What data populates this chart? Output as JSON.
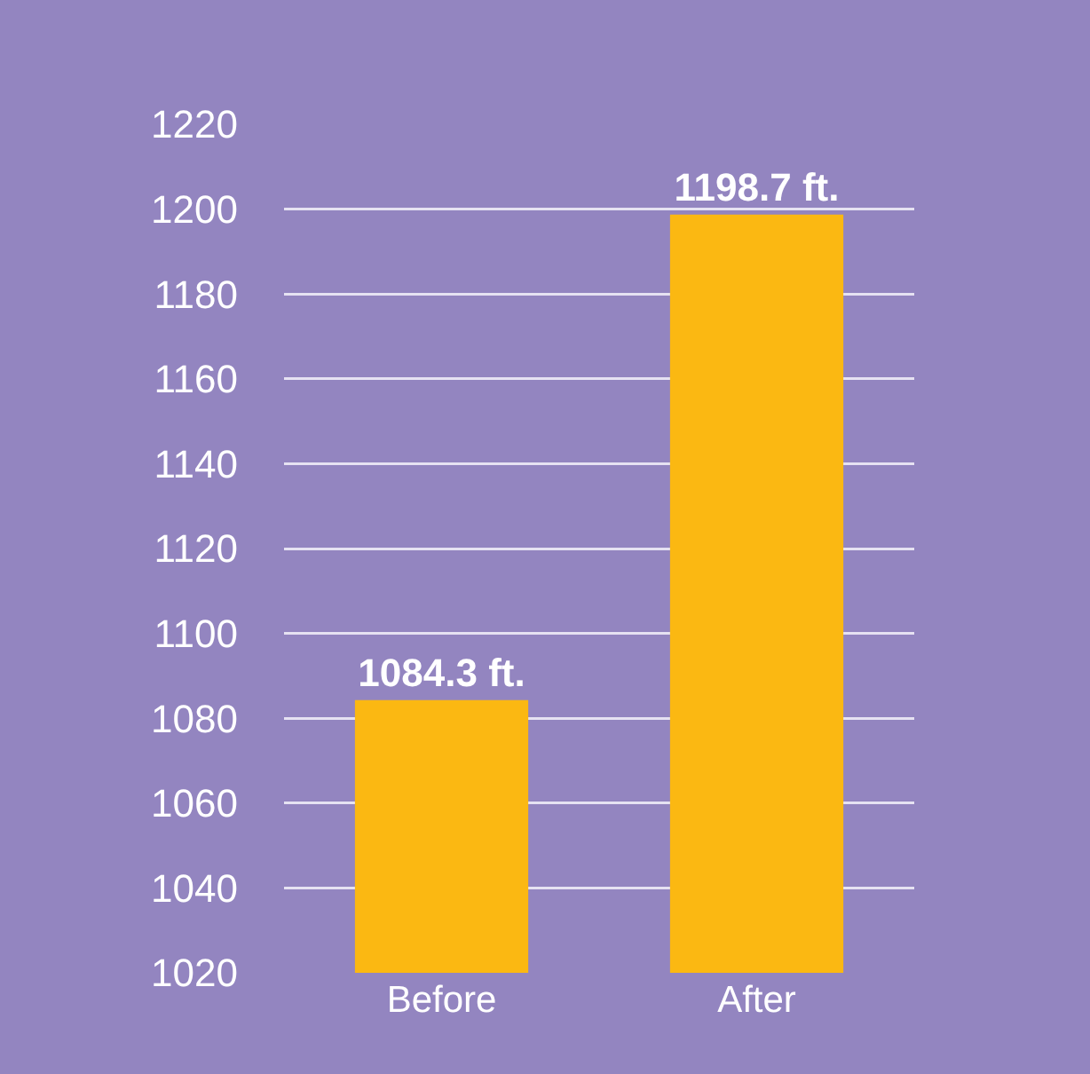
{
  "chart_data": {
    "type": "bar",
    "categories": [
      "Before",
      "After"
    ],
    "values": [
      1084.3,
      1198.7
    ],
    "value_labels": [
      "1084.3 ft.",
      "1198.7 ft."
    ],
    "color": "#fbb812",
    "ylim": [
      1020,
      1220
    ],
    "yticks": [
      1020,
      1040,
      1060,
      1080,
      1100,
      1120,
      1140,
      1160,
      1180,
      1200,
      1220
    ],
    "grid": "y"
  }
}
